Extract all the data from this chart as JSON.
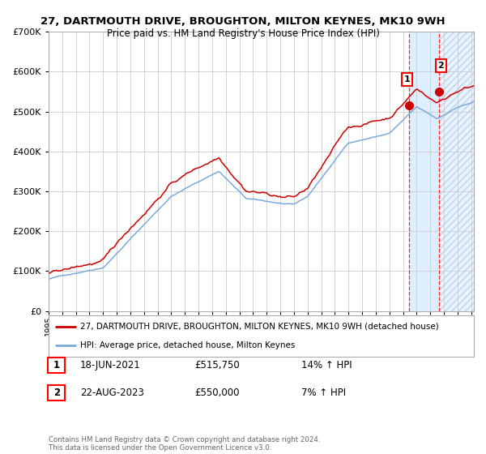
{
  "title": "27, DARTMOUTH DRIVE, BROUGHTON, MILTON KEYNES, MK10 9WH",
  "subtitle": "Price paid vs. HM Land Registry's House Price Index (HPI)",
  "legend_line1": "27, DARTMOUTH DRIVE, BROUGHTON, MILTON KEYNES, MK10 9WH (detached house)",
  "legend_line2": "HPI: Average price, detached house, Milton Keynes",
  "annotation1_label": "1",
  "annotation1_date": "18-JUN-2021",
  "annotation1_price": "£515,750",
  "annotation1_hpi": "14% ↑ HPI",
  "annotation1_year": 2021.46,
  "annotation1_value": 515750,
  "annotation2_label": "2",
  "annotation2_date": "22-AUG-2023",
  "annotation2_price": "£550,000",
  "annotation2_hpi": "7% ↑ HPI",
  "annotation2_year": 2023.64,
  "annotation2_value": 550000,
  "footer": "Contains HM Land Registry data © Crown copyright and database right 2024.\nThis data is licensed under the Open Government Licence v3.0.",
  "hpi_color": "#7aaadd",
  "price_color": "#cc0000",
  "bg_color": "#ffffff",
  "grid_color": "#cccccc",
  "highlight_color": "#ddeeff",
  "hatch_color": "#c0d0e8",
  "ylim": [
    0,
    700000
  ],
  "xlim_start": 1995.0,
  "xlim_end": 2026.2
}
